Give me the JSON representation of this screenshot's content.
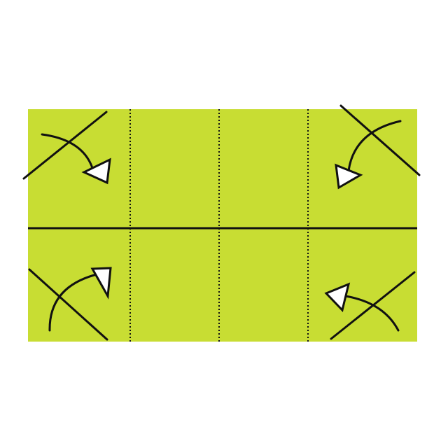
{
  "diagram": {
    "subject": "origami-fold-step",
    "colors": {
      "background": "#ffffff",
      "paper": "#c8dd33",
      "line": "#111111",
      "arrow_fill": "#ffffff"
    },
    "valley_folds": 3,
    "corner_folds": [
      "top-left",
      "top-right",
      "bottom-left",
      "bottom-right"
    ]
  }
}
